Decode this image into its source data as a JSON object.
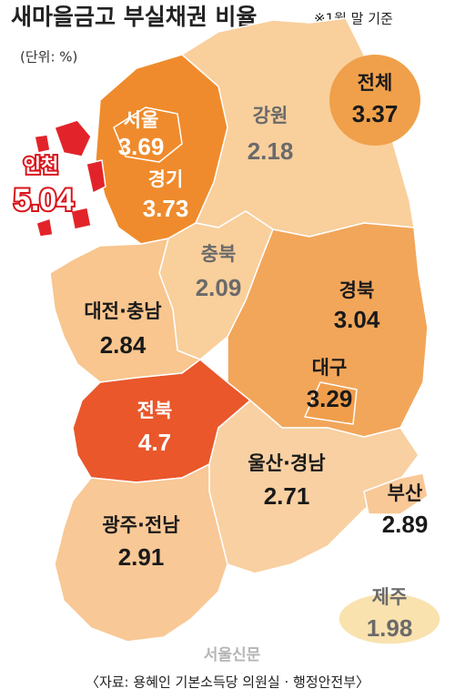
{
  "header": {
    "title": "새마을금고 부실채권 비율",
    "note": "※1월 말 기준",
    "unit": "(단위: %)"
  },
  "total": {
    "name": "전체",
    "value": 3.37,
    "color": "#f0a04a"
  },
  "regions": [
    {
      "name": "서울",
      "value": 3.69,
      "color": "#ef8b2c"
    },
    {
      "name": "경기",
      "value": 3.73,
      "color": "#ef8b2c"
    },
    {
      "name": "인천",
      "value": 5.04,
      "color": "#e2242a"
    },
    {
      "name": "강원",
      "value": 2.18,
      "color": "#f9cf9c"
    },
    {
      "name": "충북",
      "value": 2.09,
      "color": "#f9cf9c"
    },
    {
      "name": "대전·충남",
      "value": 2.84,
      "color": "#f8c68e"
    },
    {
      "name": "경북",
      "value": 3.04,
      "color": "#f2a65a"
    },
    {
      "name": "대구",
      "value": 3.29,
      "color": "#f09e4c"
    },
    {
      "name": "전북",
      "value": 4.7,
      "color": "#e9572b"
    },
    {
      "name": "울산·경남",
      "value": 2.71,
      "color": "#f8d0a2"
    },
    {
      "name": "부산",
      "value": 2.89,
      "color": "#f8c896"
    },
    {
      "name": "광주·전남",
      "value": 2.91,
      "color": "#f8c896"
    },
    {
      "name": "제주",
      "value": 1.98,
      "color": "#f9e2ae"
    }
  ],
  "watermark": "서울신문",
  "source": "〈자료: 용혜인 기본소득당 의원실 · 행정안전부〉"
}
